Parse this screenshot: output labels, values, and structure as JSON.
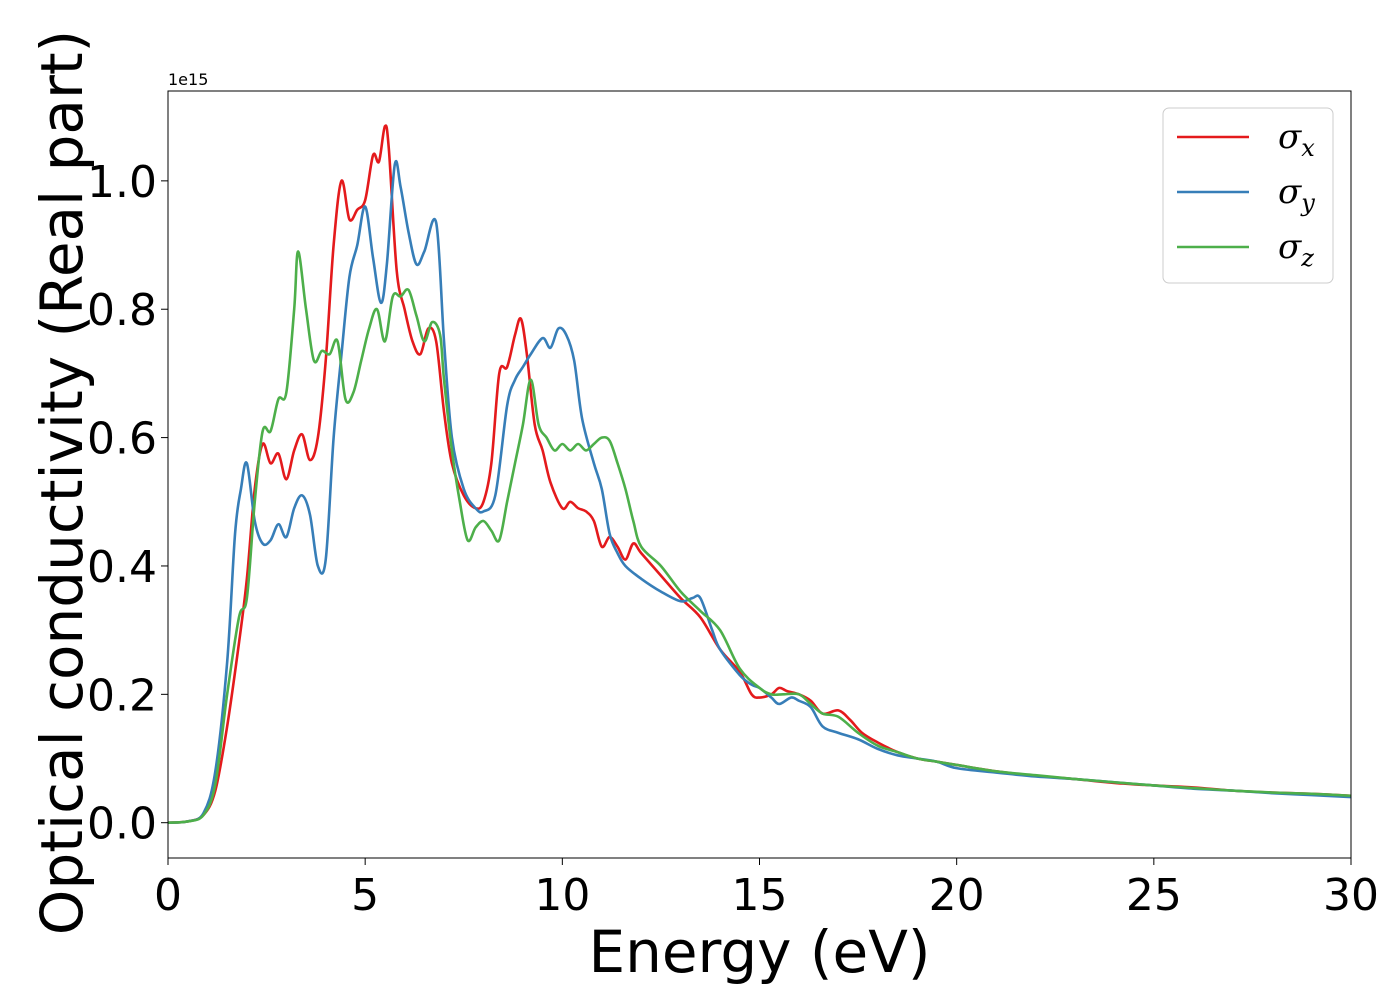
{
  "chart_data": {
    "type": "line",
    "title": "",
    "xlabel": "Energy (eV)",
    "ylabel": "Optical conductivity (Real part)",
    "y_offset_label": "1e15",
    "xlim": [
      0,
      30
    ],
    "ylim": [
      -0.055,
      1.14
    ],
    "x_ticks": [
      0,
      5,
      10,
      15,
      20,
      25,
      30
    ],
    "x_tick_labels": [
      "0",
      "5",
      "10",
      "15",
      "20",
      "25",
      "30"
    ],
    "y_ticks": [
      0.0,
      0.2,
      0.4,
      0.6,
      0.8,
      1.0
    ],
    "y_tick_labels": [
      "0.0",
      "0.2",
      "0.4",
      "0.6",
      "0.8",
      "1.0"
    ],
    "grid": false,
    "legend_position": "top-right",
    "series": [
      {
        "name": "σx",
        "symbol": "σ",
        "subscript": "x",
        "color": "#e41a1c",
        "points": [
          [
            0,
            0
          ],
          [
            0.5,
            0.002
          ],
          [
            0.9,
            0.012
          ],
          [
            1.2,
            0.05
          ],
          [
            1.5,
            0.15
          ],
          [
            1.8,
            0.28
          ],
          [
            2.0,
            0.38
          ],
          [
            2.2,
            0.52
          ],
          [
            2.4,
            0.59
          ],
          [
            2.6,
            0.56
          ],
          [
            2.8,
            0.575
          ],
          [
            3.0,
            0.535
          ],
          [
            3.2,
            0.58
          ],
          [
            3.4,
            0.605
          ],
          [
            3.6,
            0.565
          ],
          [
            3.8,
            0.6
          ],
          [
            4.0,
            0.72
          ],
          [
            4.2,
            0.9
          ],
          [
            4.4,
            1.0
          ],
          [
            4.6,
            0.94
          ],
          [
            4.8,
            0.955
          ],
          [
            5.0,
            0.97
          ],
          [
            5.2,
            1.04
          ],
          [
            5.35,
            1.03
          ],
          [
            5.5,
            1.085
          ],
          [
            5.6,
            1.05
          ],
          [
            5.8,
            0.86
          ],
          [
            6.0,
            0.8
          ],
          [
            6.2,
            0.75
          ],
          [
            6.4,
            0.73
          ],
          [
            6.6,
            0.77
          ],
          [
            6.8,
            0.75
          ],
          [
            7.0,
            0.64
          ],
          [
            7.2,
            0.56
          ],
          [
            7.5,
            0.51
          ],
          [
            7.8,
            0.49
          ],
          [
            8.0,
            0.5
          ],
          [
            8.2,
            0.56
          ],
          [
            8.4,
            0.7
          ],
          [
            8.6,
            0.71
          ],
          [
            8.8,
            0.76
          ],
          [
            8.95,
            0.785
          ],
          [
            9.1,
            0.73
          ],
          [
            9.3,
            0.62
          ],
          [
            9.5,
            0.58
          ],
          [
            9.7,
            0.53
          ],
          [
            10.0,
            0.49
          ],
          [
            10.2,
            0.5
          ],
          [
            10.4,
            0.49
          ],
          [
            10.6,
            0.485
          ],
          [
            10.8,
            0.47
          ],
          [
            11.0,
            0.43
          ],
          [
            11.2,
            0.445
          ],
          [
            11.4,
            0.43
          ],
          [
            11.6,
            0.41
          ],
          [
            11.8,
            0.435
          ],
          [
            12.0,
            0.42
          ],
          [
            12.5,
            0.385
          ],
          [
            13.0,
            0.35
          ],
          [
            13.5,
            0.32
          ],
          [
            14.0,
            0.27
          ],
          [
            14.5,
            0.235
          ],
          [
            14.8,
            0.2
          ],
          [
            15.0,
            0.195
          ],
          [
            15.3,
            0.2
          ],
          [
            15.5,
            0.21
          ],
          [
            15.7,
            0.205
          ],
          [
            16.0,
            0.2
          ],
          [
            16.3,
            0.19
          ],
          [
            16.6,
            0.17
          ],
          [
            17.0,
            0.175
          ],
          [
            17.3,
            0.16
          ],
          [
            17.6,
            0.14
          ],
          [
            18.0,
            0.125
          ],
          [
            18.5,
            0.11
          ],
          [
            19.0,
            0.1
          ],
          [
            19.5,
            0.095
          ],
          [
            20.0,
            0.09
          ],
          [
            21.0,
            0.08
          ],
          [
            22.0,
            0.073
          ],
          [
            23.0,
            0.068
          ],
          [
            24.0,
            0.062
          ],
          [
            25.0,
            0.058
          ],
          [
            26.0,
            0.055
          ],
          [
            27.0,
            0.05
          ],
          [
            28.0,
            0.047
          ],
          [
            29.0,
            0.045
          ],
          [
            30.0,
            0.042
          ]
        ]
      },
      {
        "name": "σy",
        "symbol": "σ",
        "subscript": "y",
        "color": "#377eb8",
        "points": [
          [
            0,
            0
          ],
          [
            0.5,
            0.002
          ],
          [
            0.9,
            0.015
          ],
          [
            1.2,
            0.08
          ],
          [
            1.5,
            0.25
          ],
          [
            1.7,
            0.45
          ],
          [
            1.85,
            0.52
          ],
          [
            2.0,
            0.56
          ],
          [
            2.2,
            0.47
          ],
          [
            2.4,
            0.435
          ],
          [
            2.6,
            0.44
          ],
          [
            2.8,
            0.465
          ],
          [
            3.0,
            0.445
          ],
          [
            3.2,
            0.49
          ],
          [
            3.4,
            0.51
          ],
          [
            3.6,
            0.48
          ],
          [
            3.8,
            0.4
          ],
          [
            4.0,
            0.41
          ],
          [
            4.2,
            0.6
          ],
          [
            4.4,
            0.73
          ],
          [
            4.6,
            0.85
          ],
          [
            4.8,
            0.9
          ],
          [
            5.0,
            0.96
          ],
          [
            5.2,
            0.88
          ],
          [
            5.4,
            0.81
          ],
          [
            5.55,
            0.87
          ],
          [
            5.75,
            1.025
          ],
          [
            5.9,
            0.99
          ],
          [
            6.1,
            0.92
          ],
          [
            6.3,
            0.87
          ],
          [
            6.5,
            0.89
          ],
          [
            6.8,
            0.935
          ],
          [
            7.0,
            0.75
          ],
          [
            7.2,
            0.6
          ],
          [
            7.5,
            0.52
          ],
          [
            7.8,
            0.49
          ],
          [
            8.0,
            0.485
          ],
          [
            8.3,
            0.51
          ],
          [
            8.6,
            0.65
          ],
          [
            8.8,
            0.69
          ],
          [
            9.0,
            0.71
          ],
          [
            9.2,
            0.73
          ],
          [
            9.5,
            0.755
          ],
          [
            9.7,
            0.74
          ],
          [
            9.9,
            0.77
          ],
          [
            10.1,
            0.76
          ],
          [
            10.3,
            0.72
          ],
          [
            10.5,
            0.63
          ],
          [
            10.8,
            0.56
          ],
          [
            11.0,
            0.52
          ],
          [
            11.2,
            0.45
          ],
          [
            11.4,
            0.42
          ],
          [
            11.6,
            0.4
          ],
          [
            12.0,
            0.38
          ],
          [
            12.5,
            0.36
          ],
          [
            13.0,
            0.345
          ],
          [
            13.3,
            0.35
          ],
          [
            13.5,
            0.35
          ],
          [
            13.8,
            0.3
          ],
          [
            14.0,
            0.27
          ],
          [
            14.5,
            0.23
          ],
          [
            14.8,
            0.215
          ],
          [
            15.0,
            0.21
          ],
          [
            15.3,
            0.195
          ],
          [
            15.5,
            0.185
          ],
          [
            15.8,
            0.195
          ],
          [
            16.0,
            0.19
          ],
          [
            16.3,
            0.18
          ],
          [
            16.6,
            0.15
          ],
          [
            17.0,
            0.14
          ],
          [
            17.5,
            0.13
          ],
          [
            18.0,
            0.115
          ],
          [
            18.5,
            0.105
          ],
          [
            19.0,
            0.1
          ],
          [
            19.5,
            0.095
          ],
          [
            20.0,
            0.085
          ],
          [
            21.0,
            0.078
          ],
          [
            22.0,
            0.072
          ],
          [
            23.0,
            0.068
          ],
          [
            24.0,
            0.063
          ],
          [
            25.0,
            0.058
          ],
          [
            26.0,
            0.053
          ],
          [
            27.0,
            0.05
          ],
          [
            28.0,
            0.046
          ],
          [
            29.0,
            0.043
          ],
          [
            30.0,
            0.04
          ]
        ]
      },
      {
        "name": "σz",
        "symbol": "σ",
        "subscript": "z",
        "color": "#4daf4a",
        "points": [
          [
            0,
            0
          ],
          [
            0.5,
            0.002
          ],
          [
            0.9,
            0.012
          ],
          [
            1.2,
            0.06
          ],
          [
            1.5,
            0.2
          ],
          [
            1.8,
            0.32
          ],
          [
            2.0,
            0.35
          ],
          [
            2.2,
            0.5
          ],
          [
            2.4,
            0.61
          ],
          [
            2.6,
            0.61
          ],
          [
            2.8,
            0.66
          ],
          [
            3.0,
            0.67
          ],
          [
            3.2,
            0.8
          ],
          [
            3.3,
            0.89
          ],
          [
            3.5,
            0.8
          ],
          [
            3.7,
            0.72
          ],
          [
            3.9,
            0.735
          ],
          [
            4.1,
            0.73
          ],
          [
            4.3,
            0.75
          ],
          [
            4.5,
            0.66
          ],
          [
            4.7,
            0.67
          ],
          [
            4.9,
            0.72
          ],
          [
            5.1,
            0.77
          ],
          [
            5.3,
            0.8
          ],
          [
            5.5,
            0.75
          ],
          [
            5.7,
            0.82
          ],
          [
            5.9,
            0.82
          ],
          [
            6.1,
            0.83
          ],
          [
            6.3,
            0.79
          ],
          [
            6.5,
            0.75
          ],
          [
            6.7,
            0.78
          ],
          [
            6.9,
            0.76
          ],
          [
            7.0,
            0.69
          ],
          [
            7.2,
            0.58
          ],
          [
            7.4,
            0.5
          ],
          [
            7.6,
            0.44
          ],
          [
            7.8,
            0.46
          ],
          [
            8.0,
            0.47
          ],
          [
            8.2,
            0.455
          ],
          [
            8.4,
            0.44
          ],
          [
            8.6,
            0.5
          ],
          [
            8.8,
            0.56
          ],
          [
            9.0,
            0.62
          ],
          [
            9.2,
            0.69
          ],
          [
            9.4,
            0.62
          ],
          [
            9.6,
            0.6
          ],
          [
            9.8,
            0.58
          ],
          [
            10.0,
            0.59
          ],
          [
            10.2,
            0.58
          ],
          [
            10.4,
            0.59
          ],
          [
            10.6,
            0.58
          ],
          [
            10.8,
            0.59
          ],
          [
            11.0,
            0.6
          ],
          [
            11.2,
            0.595
          ],
          [
            11.4,
            0.56
          ],
          [
            11.6,
            0.52
          ],
          [
            11.8,
            0.47
          ],
          [
            12.0,
            0.43
          ],
          [
            12.5,
            0.4
          ],
          [
            13.0,
            0.36
          ],
          [
            13.5,
            0.33
          ],
          [
            14.0,
            0.3
          ],
          [
            14.5,
            0.24
          ],
          [
            15.0,
            0.21
          ],
          [
            15.3,
            0.2
          ],
          [
            15.6,
            0.2
          ],
          [
            16.0,
            0.2
          ],
          [
            16.3,
            0.185
          ],
          [
            16.6,
            0.17
          ],
          [
            17.0,
            0.165
          ],
          [
            17.5,
            0.14
          ],
          [
            18.0,
            0.12
          ],
          [
            18.5,
            0.11
          ],
          [
            19.0,
            0.1
          ],
          [
            19.5,
            0.095
          ],
          [
            20.0,
            0.09
          ],
          [
            21.0,
            0.08
          ],
          [
            22.0,
            0.074
          ],
          [
            23.0,
            0.068
          ],
          [
            24.0,
            0.063
          ],
          [
            25.0,
            0.058
          ],
          [
            26.0,
            0.054
          ],
          [
            27.0,
            0.05
          ],
          [
            28.0,
            0.047
          ],
          [
            29.0,
            0.045
          ],
          [
            30.0,
            0.042
          ]
        ]
      }
    ]
  }
}
